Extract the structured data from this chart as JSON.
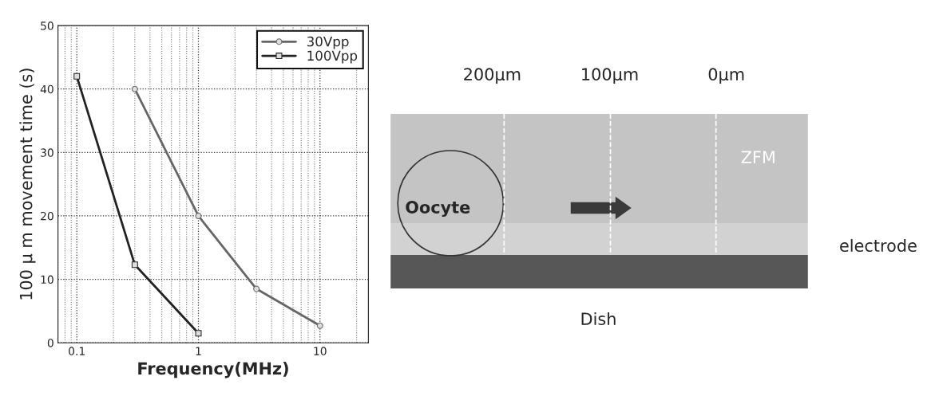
{
  "chart_data": [
    {
      "type": "line",
      "xlabel": "Frequency(MHz)",
      "ylabel": "100 μ m movement time (s)",
      "log": "x",
      "xlim": [
        0.07,
        25
      ],
      "xticks": [
        0.1,
        1,
        10
      ],
      "ylim": [
        0,
        50
      ],
      "yticks": [
        0,
        10,
        20,
        30,
        40,
        50
      ],
      "grid": true,
      "legend": "top right",
      "series": [
        {
          "name": "30Vpp",
          "color": "#666666",
          "marker": "circle",
          "x": [
            0.3,
            1,
            3,
            10
          ],
          "values": [
            40,
            20,
            8.5,
            2.7
          ]
        },
        {
          "name": "100Vpp",
          "color": "#222222",
          "marker": "square",
          "x": [
            0.1,
            0.3,
            1
          ],
          "values": [
            42,
            12.3,
            1.5
          ]
        }
      ]
    },
    {
      "type": "other",
      "annotations": [
        "200µm",
        "100µm",
        "0µm",
        "ZFM",
        "Oocyte",
        "electrode",
        "Dish"
      ]
    }
  ]
}
